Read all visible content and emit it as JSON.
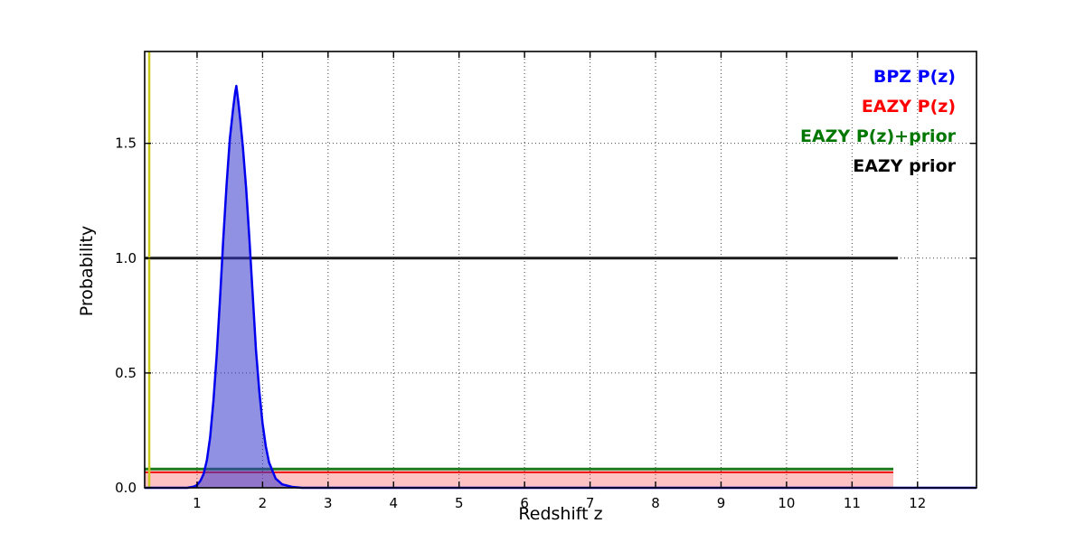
{
  "figure": {
    "background": "#ffffff",
    "border_color": "#000000"
  },
  "chart_data": {
    "type": "line",
    "title": "",
    "xlabel": "Redshift z",
    "ylabel": "Probability",
    "xlim": [
      0.2,
      12.9
    ],
    "ylim": [
      0,
      1.9
    ],
    "xticks": [
      1,
      2,
      3,
      4,
      5,
      6,
      7,
      8,
      9,
      10,
      11,
      12
    ],
    "yticks": [
      0.0,
      0.5,
      1.0,
      1.5
    ],
    "grid": {
      "on": true,
      "style": "dotted",
      "color": "#444444"
    },
    "legend": {
      "position": "upper right",
      "items": [
        {
          "label": "BPZ P(z)",
          "color": "#0000ff"
        },
        {
          "label": "EAZY P(z)",
          "color": "#ff0000"
        },
        {
          "label": "EAZY P(z)+prior",
          "color": "#007700"
        },
        {
          "label": "EAZY prior",
          "color": "#000000"
        }
      ]
    },
    "series": [
      {
        "name": "EAZY P(z)",
        "kind": "line",
        "color": "#ee0000",
        "width": 2,
        "fill": "rgba(255,80,80,0.35)",
        "points": [
          [
            0.2,
            0.068
          ],
          [
            11.63,
            0.068
          ]
        ]
      },
      {
        "name": "EAZY P(z)+prior",
        "kind": "line",
        "color": "#1a7a1a",
        "width": 3,
        "points": [
          [
            0.2,
            0.082
          ],
          [
            11.63,
            0.082
          ]
        ]
      },
      {
        "name": "EAZY prior",
        "kind": "line",
        "color": "#1a1a1a",
        "width": 3,
        "points": [
          [
            0.2,
            1.0
          ],
          [
            11.7,
            1.0
          ]
        ]
      },
      {
        "name": "z marker",
        "kind": "vline",
        "color": "#c9c91e",
        "width": 2.5,
        "x": 0.27
      },
      {
        "name": "BPZ P(z)",
        "kind": "line",
        "color": "#0000ee",
        "width": 2.5,
        "fill": "rgba(55,55,205,0.55)",
        "points": [
          [
            0.2,
            0.0
          ],
          [
            0.85,
            0.0
          ],
          [
            0.95,
            0.005
          ],
          [
            1.0,
            0.012
          ],
          [
            1.05,
            0.03
          ],
          [
            1.1,
            0.06
          ],
          [
            1.15,
            0.12
          ],
          [
            1.2,
            0.22
          ],
          [
            1.25,
            0.38
          ],
          [
            1.3,
            0.58
          ],
          [
            1.35,
            0.82
          ],
          [
            1.4,
            1.08
          ],
          [
            1.45,
            1.32
          ],
          [
            1.5,
            1.52
          ],
          [
            1.55,
            1.65
          ],
          [
            1.58,
            1.72
          ],
          [
            1.6,
            1.75
          ],
          [
            1.63,
            1.68
          ],
          [
            1.66,
            1.6
          ],
          [
            1.7,
            1.48
          ],
          [
            1.75,
            1.3
          ],
          [
            1.8,
            1.08
          ],
          [
            1.85,
            0.84
          ],
          [
            1.9,
            0.6
          ],
          [
            1.95,
            0.42
          ],
          [
            2.0,
            0.28
          ],
          [
            2.05,
            0.18
          ],
          [
            2.1,
            0.11
          ],
          [
            2.2,
            0.04
          ],
          [
            2.3,
            0.015
          ],
          [
            2.45,
            0.004
          ],
          [
            2.6,
            0.0
          ],
          [
            12.9,
            0.0
          ]
        ]
      }
    ]
  }
}
